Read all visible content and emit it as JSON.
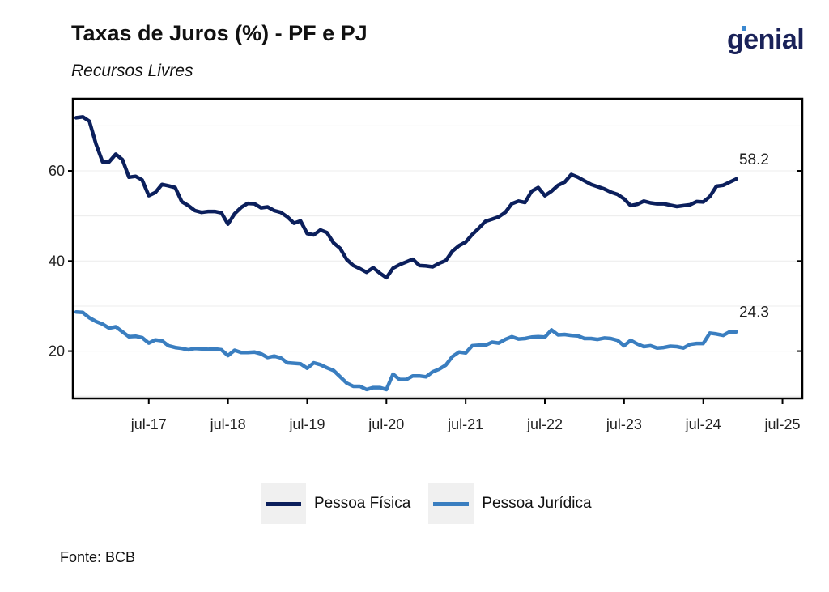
{
  "header": {
    "title": "Taxas de Juros (%) - PF e PJ",
    "subtitle": "Recursos Livres",
    "logo_text": "genial"
  },
  "footer": {
    "source": "Fonte: BCB"
  },
  "colors": {
    "pf": "#0b1f5c",
    "pj": "#3a7ec0",
    "grid": "#ececec",
    "axis": "#000000"
  },
  "chart_data": {
    "type": "line",
    "title": "Taxas de Juros (%) - PF e PJ",
    "subtitle": "Recursos Livres",
    "xlabel": "",
    "ylabel": "",
    "x_ticks": [
      "jul-17",
      "jul-18",
      "jul-19",
      "jul-20",
      "jul-21",
      "jul-22",
      "jul-23",
      "jul-24",
      "jul-25"
    ],
    "x_tick_months": [
      6,
      18,
      30,
      42,
      54,
      66,
      78,
      90,
      102
    ],
    "xlim": [
      -5.5,
      105
    ],
    "y_ticks": [
      20,
      40,
      60
    ],
    "ylim": [
      9.5,
      76
    ],
    "grid": true,
    "legend_position": "bottom",
    "x_unit": "months since 2017-01",
    "series": [
      {
        "name": "Pessoa Física",
        "color": "#0b1f5c",
        "end_label": "58.2",
        "points": [
          [
            -5,
            71.8
          ],
          [
            -4,
            72
          ],
          [
            -3,
            71
          ],
          [
            -2,
            66
          ],
          [
            -1,
            62
          ],
          [
            0,
            62
          ],
          [
            1,
            63.7
          ],
          [
            2,
            62.5
          ],
          [
            3,
            58.6
          ],
          [
            4,
            58.8
          ],
          [
            5,
            58
          ],
          [
            6,
            54.5
          ],
          [
            7,
            55.2
          ],
          [
            8,
            57
          ],
          [
            9,
            56.7
          ],
          [
            10,
            56.3
          ],
          [
            11,
            53.2
          ],
          [
            12,
            52.3
          ],
          [
            13,
            51.2
          ],
          [
            14,
            50.8
          ],
          [
            15,
            51
          ],
          [
            16,
            51
          ],
          [
            17,
            50.7
          ],
          [
            18,
            48.2
          ],
          [
            19,
            50.5
          ],
          [
            20,
            51.9
          ],
          [
            21,
            52.8
          ],
          [
            22,
            52.7
          ],
          [
            23,
            51.8
          ],
          [
            24,
            52
          ],
          [
            25,
            51.2
          ],
          [
            26,
            50.8
          ],
          [
            27,
            49.8
          ],
          [
            28,
            48.4
          ],
          [
            29,
            48.9
          ],
          [
            30,
            46.1
          ],
          [
            31,
            45.8
          ],
          [
            32,
            46.9
          ],
          [
            33,
            46.3
          ],
          [
            34,
            44
          ],
          [
            35,
            42.8
          ],
          [
            36,
            40.3
          ],
          [
            37,
            39
          ],
          [
            38,
            38.3
          ],
          [
            39,
            37.5
          ],
          [
            40,
            38.5
          ],
          [
            41,
            37.3
          ],
          [
            42,
            36.3
          ],
          [
            43,
            38.4
          ],
          [
            44,
            39.2
          ],
          [
            45,
            39.8
          ],
          [
            46,
            40.4
          ],
          [
            47,
            39
          ],
          [
            48,
            38.9
          ],
          [
            49,
            38.7
          ],
          [
            50,
            39.5
          ],
          [
            51,
            40.1
          ],
          [
            52,
            42.2
          ],
          [
            53,
            43.4
          ],
          [
            54,
            44.2
          ],
          [
            55,
            45.9
          ],
          [
            56,
            47.3
          ],
          [
            57,
            48.8
          ],
          [
            58,
            49.3
          ],
          [
            59,
            49.8
          ],
          [
            60,
            50.8
          ],
          [
            61,
            52.7
          ],
          [
            62,
            53.3
          ],
          [
            63,
            53
          ],
          [
            64,
            55.5
          ],
          [
            65,
            56.3
          ],
          [
            66,
            54.5
          ],
          [
            67,
            55.5
          ],
          [
            68,
            56.8
          ],
          [
            69,
            57.5
          ],
          [
            70,
            59.2
          ],
          [
            71,
            58.6
          ],
          [
            72,
            57.8
          ],
          [
            73,
            57
          ],
          [
            74,
            56.5
          ],
          [
            75,
            56
          ],
          [
            76,
            55.3
          ],
          [
            77,
            54.8
          ],
          [
            78,
            53.8
          ],
          [
            79,
            52.3
          ],
          [
            80,
            52.6
          ],
          [
            81,
            53.3
          ],
          [
            82,
            52.9
          ],
          [
            83,
            52.7
          ],
          [
            84,
            52.7
          ],
          [
            85,
            52.4
          ],
          [
            86,
            52.1
          ],
          [
            87,
            52.3
          ],
          [
            88,
            52.5
          ],
          [
            89,
            53.2
          ],
          [
            90,
            53.1
          ],
          [
            91,
            54.3
          ],
          [
            92,
            56.6
          ],
          [
            93,
            56.8
          ],
          [
            94,
            57.5
          ],
          [
            95,
            58.2
          ]
        ]
      },
      {
        "name": "Pessoa Jurídica",
        "color": "#3a7ec0",
        "end_label": "24.3",
        "points": [
          [
            -5,
            28.7
          ],
          [
            -4,
            28.6
          ],
          [
            -3,
            27.4
          ],
          [
            -2,
            26.6
          ],
          [
            -1,
            26
          ],
          [
            0,
            25.1
          ],
          [
            1,
            25.4
          ],
          [
            2,
            24.3
          ],
          [
            3,
            23.2
          ],
          [
            4,
            23.3
          ],
          [
            5,
            23
          ],
          [
            6,
            21.8
          ],
          [
            7,
            22.5
          ],
          [
            8,
            22.3
          ],
          [
            9,
            21.2
          ],
          [
            10,
            20.8
          ],
          [
            11,
            20.6
          ],
          [
            12,
            20.3
          ],
          [
            13,
            20.6
          ],
          [
            14,
            20.5
          ],
          [
            15,
            20.4
          ],
          [
            16,
            20.5
          ],
          [
            17,
            20.3
          ],
          [
            18,
            19
          ],
          [
            19,
            20.2
          ],
          [
            20,
            19.7
          ],
          [
            21,
            19.7
          ],
          [
            22,
            19.8
          ],
          [
            23,
            19.4
          ],
          [
            24,
            18.6
          ],
          [
            25,
            18.9
          ],
          [
            26,
            18.5
          ],
          [
            27,
            17.4
          ],
          [
            28,
            17.3
          ],
          [
            29,
            17.2
          ],
          [
            30,
            16.2
          ],
          [
            31,
            17.4
          ],
          [
            32,
            17
          ],
          [
            33,
            16.3
          ],
          [
            34,
            15.7
          ],
          [
            35,
            14.3
          ],
          [
            36,
            12.9
          ],
          [
            37,
            12.2
          ],
          [
            38,
            12.2
          ],
          [
            39,
            11.5
          ],
          [
            40,
            11.9
          ],
          [
            41,
            11.9
          ],
          [
            42,
            11.5
          ],
          [
            43,
            14.9
          ],
          [
            44,
            13.7
          ],
          [
            45,
            13.7
          ],
          [
            46,
            14.5
          ],
          [
            47,
            14.5
          ],
          [
            48,
            14.3
          ],
          [
            49,
            15.4
          ],
          [
            50,
            16
          ],
          [
            51,
            16.9
          ],
          [
            52,
            18.8
          ],
          [
            53,
            19.8
          ],
          [
            54,
            19.6
          ],
          [
            55,
            21.2
          ],
          [
            56,
            21.3
          ],
          [
            57,
            21.3
          ],
          [
            58,
            22
          ],
          [
            59,
            21.8
          ],
          [
            60,
            22.6
          ],
          [
            61,
            23.2
          ],
          [
            62,
            22.7
          ],
          [
            63,
            22.8
          ],
          [
            64,
            23.1
          ],
          [
            65,
            23.2
          ],
          [
            66,
            23.1
          ],
          [
            67,
            24.7
          ],
          [
            68,
            23.6
          ],
          [
            69,
            23.7
          ],
          [
            70,
            23.5
          ],
          [
            71,
            23.4
          ],
          [
            72,
            22.8
          ],
          [
            73,
            22.8
          ],
          [
            74,
            22.6
          ],
          [
            75,
            22.9
          ],
          [
            76,
            22.8
          ],
          [
            77,
            22.4
          ],
          [
            78,
            21.2
          ],
          [
            79,
            22.4
          ],
          [
            80,
            21.6
          ],
          [
            81,
            21
          ],
          [
            82,
            21.2
          ],
          [
            83,
            20.7
          ],
          [
            84,
            20.8
          ],
          [
            85,
            21.1
          ],
          [
            86,
            21
          ],
          [
            87,
            20.7
          ],
          [
            88,
            21.5
          ],
          [
            89,
            21.7
          ],
          [
            90,
            21.7
          ],
          [
            91,
            24
          ],
          [
            92,
            23.8
          ],
          [
            93,
            23.5
          ],
          [
            94,
            24.3
          ],
          [
            95,
            24.3
          ]
        ]
      }
    ]
  }
}
